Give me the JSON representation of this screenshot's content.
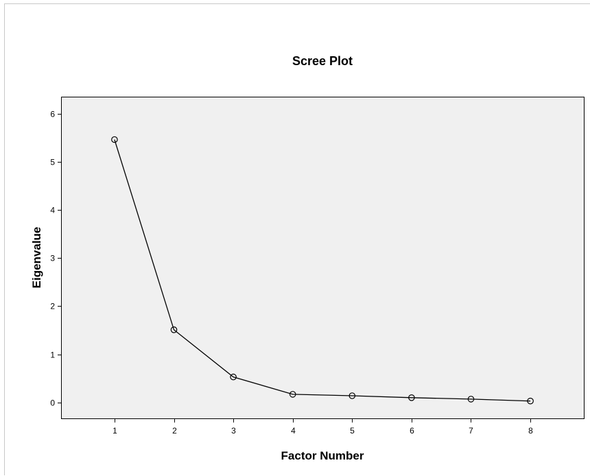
{
  "chart_data": {
    "type": "line",
    "title": "Scree Plot",
    "xlabel": "Factor Number",
    "ylabel": "Eigenvalue",
    "x": [
      1,
      2,
      3,
      4,
      5,
      6,
      7,
      8
    ],
    "series": [
      {
        "values": [
          5.46,
          1.51,
          0.53,
          0.17,
          0.14,
          0.1,
          0.07,
          0.03
        ]
      }
    ],
    "xlim": [
      0.1,
      8.9
    ],
    "ylim": [
      -0.33,
      6.35
    ],
    "xticks": [
      1,
      2,
      3,
      4,
      5,
      6,
      7,
      8
    ],
    "yticks": [
      0,
      1,
      2,
      3,
      4,
      5,
      6
    ],
    "grid": false,
    "legend": "none",
    "marker": "hollow circle",
    "colors": {
      "plot_background": "#f0f0f0",
      "line": "#000000",
      "marker_edge": "#000000"
    }
  }
}
